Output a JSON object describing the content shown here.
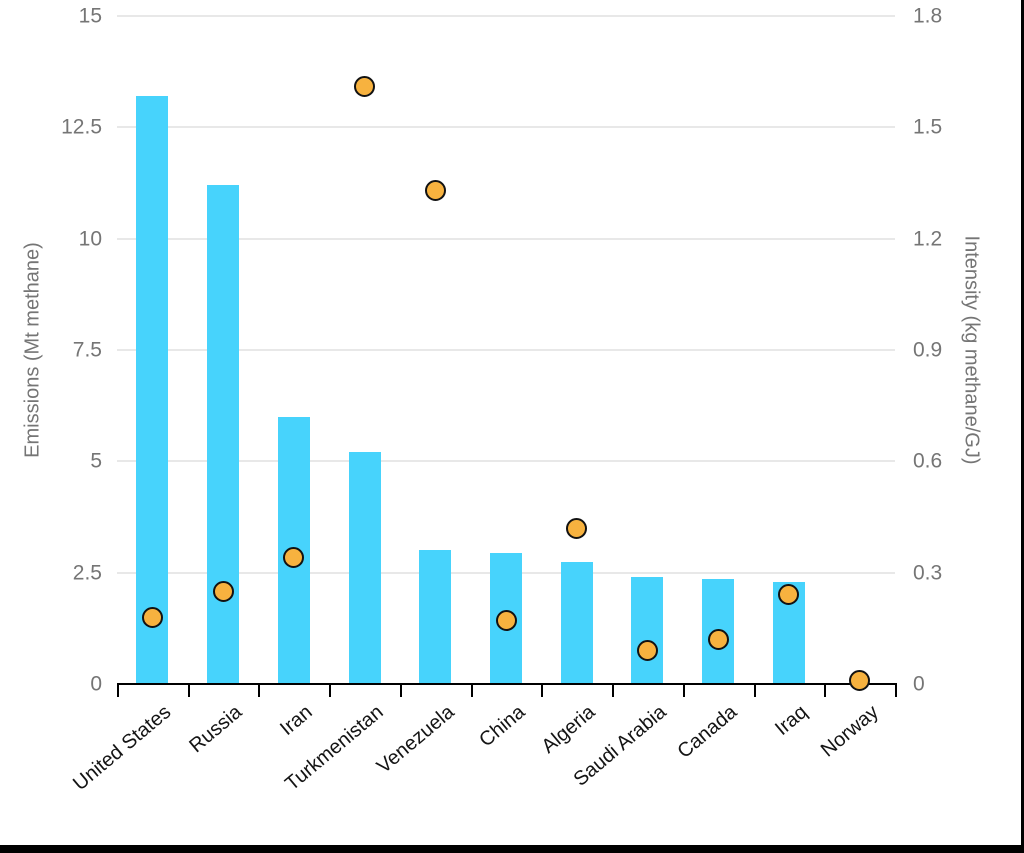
{
  "chart_data": {
    "type": "bar",
    "title": "",
    "categories": [
      "United States",
      "Russia",
      "Iran",
      "Turkmenistan",
      "Venezuela",
      "China",
      "Algeria",
      "Saudi Arabia",
      "Canada",
      "Iraq",
      "Norway"
    ],
    "series": [
      {
        "name": "Emissions",
        "type": "bar",
        "axis": "left",
        "values": [
          13.2,
          11.2,
          6.0,
          5.2,
          3.0,
          2.95,
          2.75,
          2.4,
          2.35,
          2.3,
          0
        ]
      },
      {
        "name": "Intensity",
        "type": "scatter",
        "axis": "right",
        "values": [
          0.18,
          0.25,
          0.34,
          1.61,
          1.33,
          0.17,
          0.42,
          0.09,
          0.12,
          0.24,
          0.01
        ]
      }
    ],
    "left_axis": {
      "label": "Emissions (Mt methane)",
      "min": 0,
      "max": 15,
      "ticks": [
        0,
        2.5,
        5,
        7.5,
        10,
        12.5,
        15
      ],
      "tick_labels": [
        "0",
        "2.5",
        "5",
        "7.5",
        "10",
        "12.5",
        "15"
      ]
    },
    "right_axis": {
      "label": "Intensity (kg methane/GJ)",
      "min": 0,
      "max": 1.8,
      "ticks": [
        0,
        0.3,
        0.6,
        0.9,
        1.2,
        1.5,
        1.8
      ],
      "tick_labels": [
        "0",
        "0.3",
        "0.6",
        "0.9",
        "1.2",
        "1.5",
        "1.8"
      ]
    },
    "grid": true,
    "legend": "none",
    "colors": {
      "bar": "#47d3fc",
      "dot_fill": "#f7b23f",
      "dot_stroke": "#121212",
      "gridline": "#e8e8e8",
      "axis_line": "#000000",
      "tick_text": "#757575",
      "category_text": "#141414"
    }
  }
}
